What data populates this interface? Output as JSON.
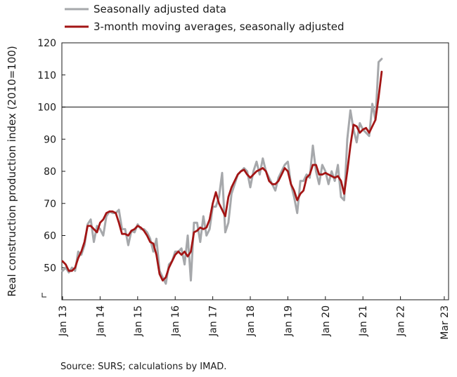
{
  "chart_data": {
    "type": "line",
    "ylabel": "Real construction production index (2010=100)",
    "ylim": [
      40,
      120
    ],
    "yticks": [
      50,
      60,
      70,
      80,
      90,
      100,
      110,
      120
    ],
    "x_tick_labels": [
      "Jan 13",
      "Jan 14",
      "Jan 15",
      "Jan 16",
      "Jan 17",
      "Jan 18",
      "Jan 19",
      "Jan 20",
      "Jan 21",
      "Jan 22",
      "Mar 23"
    ],
    "x_tick_month_index": [
      0,
      12,
      24,
      36,
      48,
      60,
      72,
      84,
      96,
      108,
      122
    ],
    "reference_line": 100,
    "legend_position": "top",
    "source": "Source: SURS; calculations by IMAD.",
    "series": [
      {
        "name": "Seasonally adjusted data",
        "color": "#a6a8ab",
        "values": [
          49.0,
          50.0,
          48.5,
          50.0,
          49.0,
          55.0,
          54.0,
          57.0,
          63.5,
          65.0,
          58.0,
          63.0,
          62.0,
          60.0,
          66.0,
          67.5,
          67.0,
          67.0,
          68.0,
          62.0,
          62.0,
          57.0,
          61.5,
          61.0,
          63.5,
          62.0,
          62.0,
          61.0,
          59.0,
          55.0,
          59.0,
          49.0,
          47.0,
          45.0,
          51.0,
          52.0,
          55.0,
          55.0,
          56.0,
          51.0,
          60.0,
          46.0,
          64.0,
          64.0,
          58.0,
          66.0,
          60.0,
          62.0,
          69.0,
          69.0,
          72.0,
          79.5,
          61.0,
          64.0,
          73.0,
          76.0,
          79.0,
          80.0,
          81.0,
          80.0,
          75.0,
          80.0,
          83.0,
          79.0,
          84.0,
          80.0,
          78.0,
          76.0,
          74.0,
          78.0,
          80.0,
          82.0,
          83.0,
          76.0,
          72.0,
          67.0,
          77.0,
          77.0,
          79.0,
          78.0,
          88.0,
          80.0,
          76.0,
          82.0,
          80.0,
          76.0,
          80.0,
          77.0,
          82.0,
          72.0,
          71.0,
          90.0,
          99.0,
          93.0,
          89.0,
          95.0,
          93.0,
          92.0,
          91.0,
          101.0,
          96.0,
          114.0,
          115.0
        ]
      },
      {
        "name": "3-month moving averages, seasonally adjusted",
        "color": "#a31515",
        "values": [
          52.0,
          51.0,
          49.0,
          49.0,
          50.0,
          53.0,
          55.0,
          58.0,
          63.0,
          63.0,
          62.0,
          61.0,
          64.0,
          65.0,
          67.0,
          67.5,
          67.5,
          67.0,
          64.0,
          60.5,
          60.5,
          60.0,
          61.5,
          62.0,
          63.0,
          62.5,
          61.5,
          60.0,
          58.0,
          57.5,
          54.0,
          48.0,
          46.0,
          47.0,
          50.0,
          52.0,
          54.0,
          55.0,
          54.0,
          55.0,
          53.5,
          55.0,
          61.0,
          61.5,
          62.5,
          62.0,
          62.5,
          65.0,
          70.0,
          73.5,
          70.0,
          68.0,
          66.0,
          72.0,
          75.0,
          77.0,
          79.0,
          80.0,
          80.5,
          79.0,
          78.0,
          79.0,
          80.0,
          80.5,
          81.0,
          80.0,
          77.0,
          76.0,
          76.0,
          77.0,
          79.0,
          81.0,
          80.0,
          76.0,
          74.0,
          71.0,
          73.0,
          74.0,
          78.0,
          79.0,
          82.0,
          82.0,
          79.0,
          79.0,
          79.5,
          79.0,
          78.5,
          78.0,
          78.5,
          77.0,
          73.0,
          80.0,
          88.0,
          94.5,
          94.0,
          92.0,
          93.0,
          93.5,
          92.0,
          94.0,
          96.0,
          103.0,
          111.0
        ]
      }
    ]
  }
}
